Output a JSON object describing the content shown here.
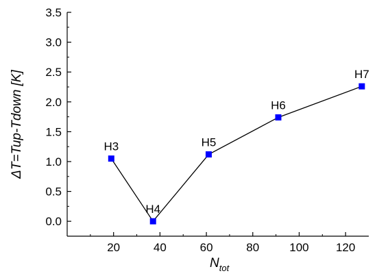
{
  "chart_data": {
    "type": "line",
    "title": "",
    "xlabel": "N",
    "xlabel_sub": "tot",
    "ylabel": "ΔT=Tup-Tdown [K]",
    "xlim": [
      0,
      130
    ],
    "ylim": [
      -0.25,
      3.5
    ],
    "xticks": [
      20,
      40,
      60,
      80,
      100,
      120
    ],
    "yticks": [
      0.0,
      0.5,
      1.0,
      1.5,
      2.0,
      2.5,
      3.0,
      3.5
    ],
    "ytick_labels": [
      "0.0",
      "0.5",
      "1.0",
      "1.5",
      "2.0",
      "2.5",
      "3.0",
      "3.5"
    ],
    "grid": false,
    "series": [
      {
        "color": "#0000ff",
        "marker": "square",
        "line_color": "#000000",
        "x": [
          19,
          37,
          61,
          91,
          127
        ],
        "y": [
          1.05,
          0.0,
          1.12,
          1.74,
          2.26
        ],
        "labels": [
          "H3",
          "H4",
          "H5",
          "H6",
          "H7"
        ]
      }
    ]
  }
}
